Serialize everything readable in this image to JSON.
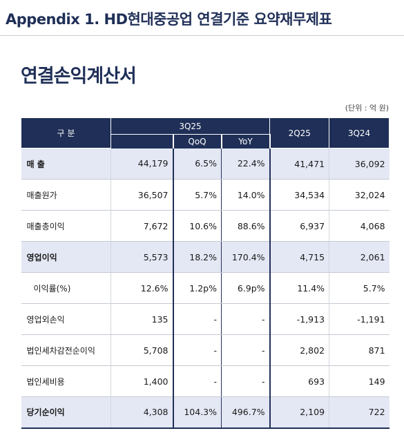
{
  "header": {
    "title": "Appendix 1. HD현대중공업 연결기준 요약재무제표"
  },
  "section": {
    "title": "연결손익계산서",
    "unit": "(단위 : 억 원)"
  },
  "table": {
    "headers": {
      "label": "구  분",
      "current": "3Q25",
      "qoq": "QoQ",
      "yoy": "YoY",
      "prev_q": "2Q25",
      "prev_y": "3Q24"
    },
    "rows": [
      {
        "label": "매    출",
        "current": "44,179",
        "qoq": "6.5%",
        "yoy": "22.4%",
        "prev_q": "41,471",
        "prev_y": "36,092"
      },
      {
        "label": "매출원가",
        "current": "36,507",
        "qoq": "5.7%",
        "yoy": "14.0%",
        "prev_q": "34,534",
        "prev_y": "32,024"
      },
      {
        "label": "매출총이익",
        "current": "7,672",
        "qoq": "10.6%",
        "yoy": "88.6%",
        "prev_q": "6,937",
        "prev_y": "4,068"
      },
      {
        "label": "영업이익",
        "current": "5,573",
        "qoq": "18.2%",
        "yoy": "170.4%",
        "prev_q": "4,715",
        "prev_y": "2,061"
      },
      {
        "label": "이익률(%)",
        "current": "12.6%",
        "qoq": "1.2p%",
        "yoy": "6.9p%",
        "prev_q": "11.4%",
        "prev_y": "5.7%"
      },
      {
        "label": "영업외손익",
        "current": "135",
        "qoq": "-",
        "yoy": "-",
        "prev_q": "-1,913",
        "prev_y": "-1,191"
      },
      {
        "label": "법인세차감전순이익",
        "current": "5,708",
        "qoq": "-",
        "yoy": "-",
        "prev_q": "2,802",
        "prev_y": "871"
      },
      {
        "label": "법인세비용",
        "current": "1,400",
        "qoq": "-",
        "yoy": "-",
        "prev_q": "693",
        "prev_y": "149"
      },
      {
        "label": "당기순이익",
        "current": "4,308",
        "qoq": "104.3%",
        "yoy": "496.7%",
        "prev_q": "2,109",
        "prev_y": "722"
      }
    ]
  }
}
